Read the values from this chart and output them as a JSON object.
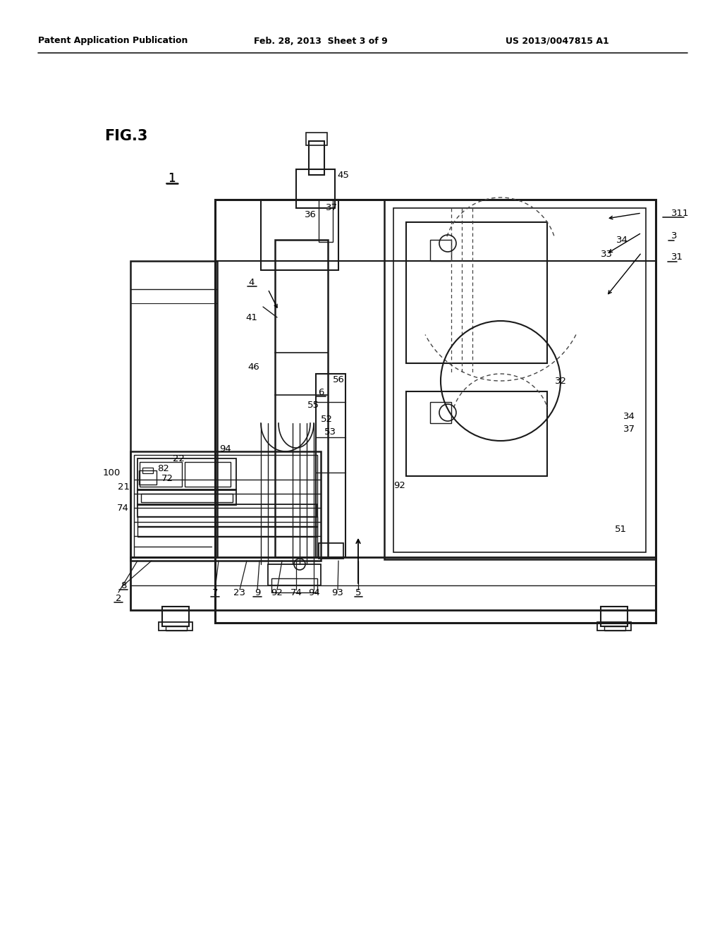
{
  "background_color": "#ffffff",
  "header_left": "Patent Application Publication",
  "header_mid": "Feb. 28, 2013  Sheet 3 of 9",
  "header_right": "US 2013/0047815 A1",
  "line_color": "#1a1a1a",
  "dashed_color": "#444444",
  "fig_label": "FIG.3"
}
